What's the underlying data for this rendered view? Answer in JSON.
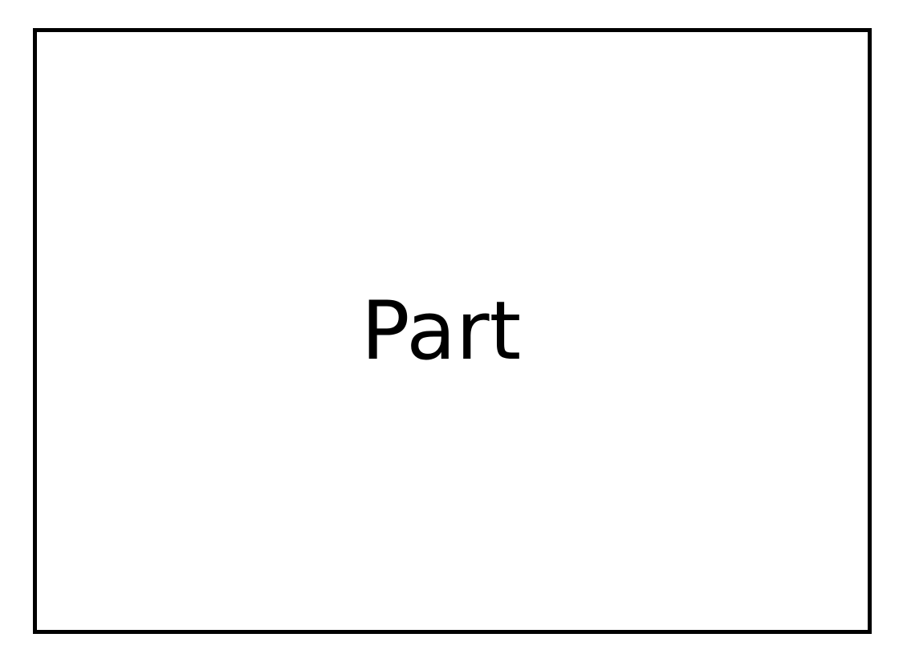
{
  "diagram": {
    "box_label": "Part",
    "border_color": "#000000",
    "background_color": "#ffffff"
  }
}
